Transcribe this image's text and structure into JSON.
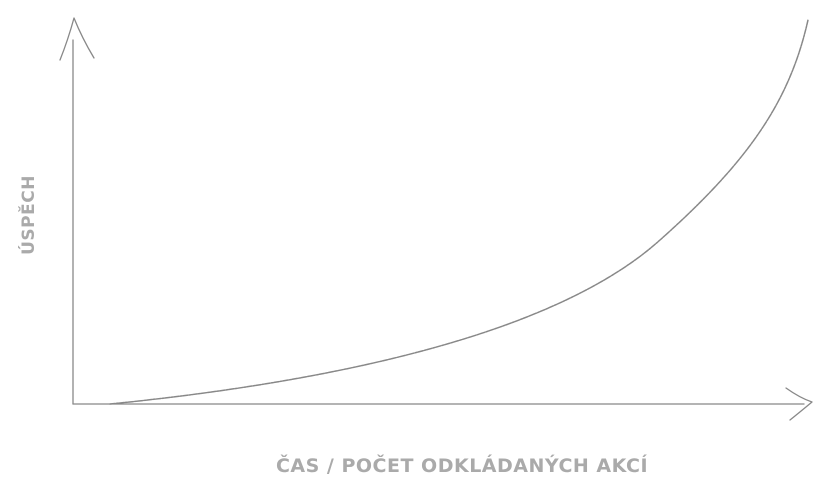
{
  "diagram": {
    "x_axis_label": "Čas / počet odkládaných akcí",
    "y_axis_label": "Úspěch",
    "curve": {
      "shape": "exponential-growth",
      "description_note": ""
    },
    "colors": {
      "line": "#888888",
      "text": "#aaaaaa",
      "background": "#ffffff"
    }
  }
}
